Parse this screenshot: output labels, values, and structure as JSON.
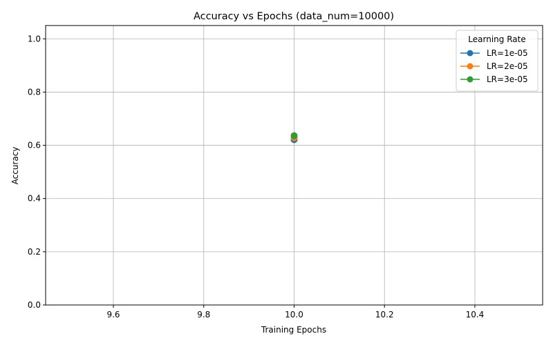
{
  "chart_data": {
    "type": "line",
    "title": "Accuracy vs Epochs (data_num=10000)",
    "xlabel": "Training Epochs",
    "ylabel": "Accuracy",
    "xlim": [
      9.45,
      10.55
    ],
    "ylim": [
      0.0,
      1.05
    ],
    "xticks": [
      9.6,
      9.8,
      10.0,
      10.2,
      10.4
    ],
    "xtick_labels": [
      "9.6",
      "9.8",
      "10.0",
      "10.2",
      "10.4"
    ],
    "yticks": [
      0.0,
      0.2,
      0.4,
      0.6,
      0.8,
      1.0
    ],
    "ytick_labels": [
      "0.0",
      "0.2",
      "0.4",
      "0.6",
      "0.8",
      "1.0"
    ],
    "grid": true,
    "legend": {
      "title": "Learning Rate",
      "placement": "top-right"
    },
    "series": [
      {
        "name": "LR=1e-05",
        "color": "#1f77b4",
        "x": [
          10
        ],
        "y": [
          0.621
        ]
      },
      {
        "name": "LR=2e-05",
        "color": "#ff7f0e",
        "x": [
          10
        ],
        "y": [
          0.628
        ]
      },
      {
        "name": "LR=3e-05",
        "color": "#2ca02c",
        "x": [
          10
        ],
        "y": [
          0.636
        ]
      }
    ]
  }
}
